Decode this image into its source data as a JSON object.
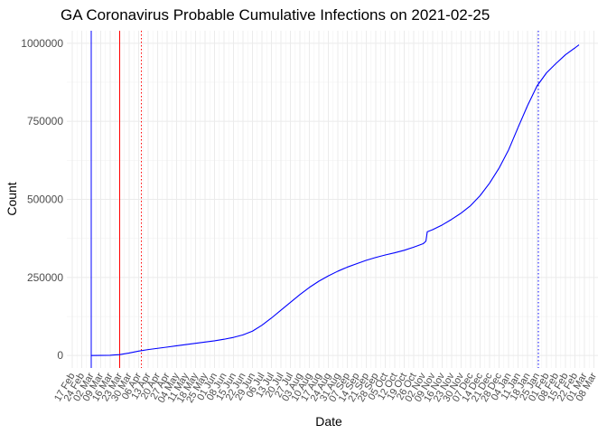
{
  "chart_data": {
    "type": "line",
    "title": "GA Coronavirus Probable Cumulative Infections on 2021-02-25",
    "xlabel": "Date",
    "ylabel": "Count",
    "x_range": [
      "2020-02-13",
      "2021-03-11"
    ],
    "ylim": [
      -40000,
      1040000
    ],
    "y_ticks": [
      0,
      250000,
      500000,
      750000,
      1000000
    ],
    "y_tick_labels": [
      "0",
      "250000",
      "500000",
      "750000",
      "1000000"
    ],
    "x_ticks": [
      "2020-02-17",
      "2020-02-24",
      "2020-03-02",
      "2020-03-09",
      "2020-03-16",
      "2020-03-23",
      "2020-03-30",
      "2020-04-06",
      "2020-04-13",
      "2020-04-20",
      "2020-04-27",
      "2020-05-04",
      "2020-05-11",
      "2020-05-18",
      "2020-05-25",
      "2020-06-01",
      "2020-06-08",
      "2020-06-15",
      "2020-06-22",
      "2020-06-29",
      "2020-07-06",
      "2020-07-13",
      "2020-07-20",
      "2020-07-27",
      "2020-08-03",
      "2020-08-10",
      "2020-08-17",
      "2020-08-24",
      "2020-08-31",
      "2020-09-07",
      "2020-09-14",
      "2020-09-21",
      "2020-09-28",
      "2020-10-05",
      "2020-10-12",
      "2020-10-19",
      "2020-10-26",
      "2020-11-02",
      "2020-11-09",
      "2020-11-16",
      "2020-11-23",
      "2020-11-30",
      "2020-12-07",
      "2020-12-14",
      "2020-12-21",
      "2020-12-28",
      "2021-01-04",
      "2021-01-11",
      "2021-01-18",
      "2021-01-25",
      "2021-02-01",
      "2021-02-08",
      "2021-02-15",
      "2021-02-22",
      "2021-03-01",
      "2021-03-08"
    ],
    "x_tick_labels": [
      "17 Feb",
      "24 Feb",
      "02 Mar",
      "09 Mar",
      "16 Mar",
      "23 Mar",
      "30 Mar",
      "06 Apr",
      "13 Apr",
      "20 Apr",
      "27 Apr",
      "04 May",
      "11 May",
      "18 May",
      "25 May",
      "01 Jun",
      "08 Jun",
      "15 Jun",
      "22 Jun",
      "29 Jun",
      "06 Jul",
      "13 Jul",
      "20 Jul",
      "27 Jul",
      "03 Aug",
      "10 Aug",
      "17 Aug",
      "24 Aug",
      "31 Aug",
      "07 Sep",
      "14 Sep",
      "21 Sep",
      "28 Sep",
      "05 Oct",
      "12 Oct",
      "19 Oct",
      "26 Oct",
      "02 Nov",
      "09 Nov",
      "16 Nov",
      "23 Nov",
      "30 Nov",
      "07 Dec",
      "14 Dec",
      "21 Dec",
      "28 Dec",
      "04 Jan",
      "11 Jan",
      "18 Jan",
      "25 Jan",
      "01 Feb",
      "08 Feb",
      "15 Feb",
      "22 Feb",
      "01 Mar",
      "08 Mar"
    ],
    "grid": true,
    "legend": "none",
    "series": [
      {
        "color": "#0000ff",
        "points": [
          [
            "2020-03-02",
            0
          ],
          [
            "2020-03-16",
            800
          ],
          [
            "2020-03-23",
            3000
          ],
          [
            "2020-03-30",
            8000
          ],
          [
            "2020-04-06",
            14000
          ],
          [
            "2020-04-13",
            19000
          ],
          [
            "2020-04-20",
            23000
          ],
          [
            "2020-04-27",
            27000
          ],
          [
            "2020-05-04",
            31000
          ],
          [
            "2020-05-11",
            35000
          ],
          [
            "2020-05-18",
            39000
          ],
          [
            "2020-05-25",
            43000
          ],
          [
            "2020-06-01",
            47000
          ],
          [
            "2020-06-08",
            52000
          ],
          [
            "2020-06-15",
            58000
          ],
          [
            "2020-06-22",
            66000
          ],
          [
            "2020-06-29",
            78000
          ],
          [
            "2020-07-06",
            97000
          ],
          [
            "2020-07-13",
            120000
          ],
          [
            "2020-07-20",
            145000
          ],
          [
            "2020-07-27",
            170000
          ],
          [
            "2020-08-03",
            195000
          ],
          [
            "2020-08-10",
            218000
          ],
          [
            "2020-08-17",
            238000
          ],
          [
            "2020-08-24",
            255000
          ],
          [
            "2020-08-31",
            270000
          ],
          [
            "2020-09-07",
            283000
          ],
          [
            "2020-09-14",
            294000
          ],
          [
            "2020-09-21",
            305000
          ],
          [
            "2020-09-28",
            314000
          ],
          [
            "2020-10-05",
            322000
          ],
          [
            "2020-10-12",
            329000
          ],
          [
            "2020-10-19",
            337000
          ],
          [
            "2020-10-26",
            347000
          ],
          [
            "2020-11-02",
            358000
          ],
          [
            "2020-11-04",
            366000
          ],
          [
            "2020-11-05",
            396000
          ],
          [
            "2020-11-09",
            403000
          ],
          [
            "2020-11-16",
            418000
          ],
          [
            "2020-11-23",
            436000
          ],
          [
            "2020-11-30",
            456000
          ],
          [
            "2020-12-07",
            480000
          ],
          [
            "2020-12-14",
            512000
          ],
          [
            "2020-12-21",
            552000
          ],
          [
            "2020-12-28",
            600000
          ],
          [
            "2021-01-04",
            658000
          ],
          [
            "2021-01-11",
            730000
          ],
          [
            "2021-01-18",
            800000
          ],
          [
            "2021-01-25",
            863000
          ],
          [
            "2021-02-01",
            905000
          ],
          [
            "2021-02-08",
            935000
          ],
          [
            "2021-02-15",
            963000
          ],
          [
            "2021-02-22",
            985000
          ],
          [
            "2021-02-25",
            995000
          ]
        ]
      }
    ],
    "vertical_lines": [
      {
        "x": "2020-03-02",
        "color": "#0000ff",
        "style": "solid"
      },
      {
        "x": "2020-03-23",
        "color": "#ff0000",
        "style": "solid"
      },
      {
        "x": "2020-04-08",
        "color": "#ff0000",
        "style": "dotted"
      },
      {
        "x": "2021-01-26",
        "color": "#0000ff",
        "style": "dotted"
      }
    ],
    "colors": {
      "background": "#ffffff",
      "grid_major": "#ebebeb",
      "grid_minor": "#f2f2f2"
    }
  }
}
